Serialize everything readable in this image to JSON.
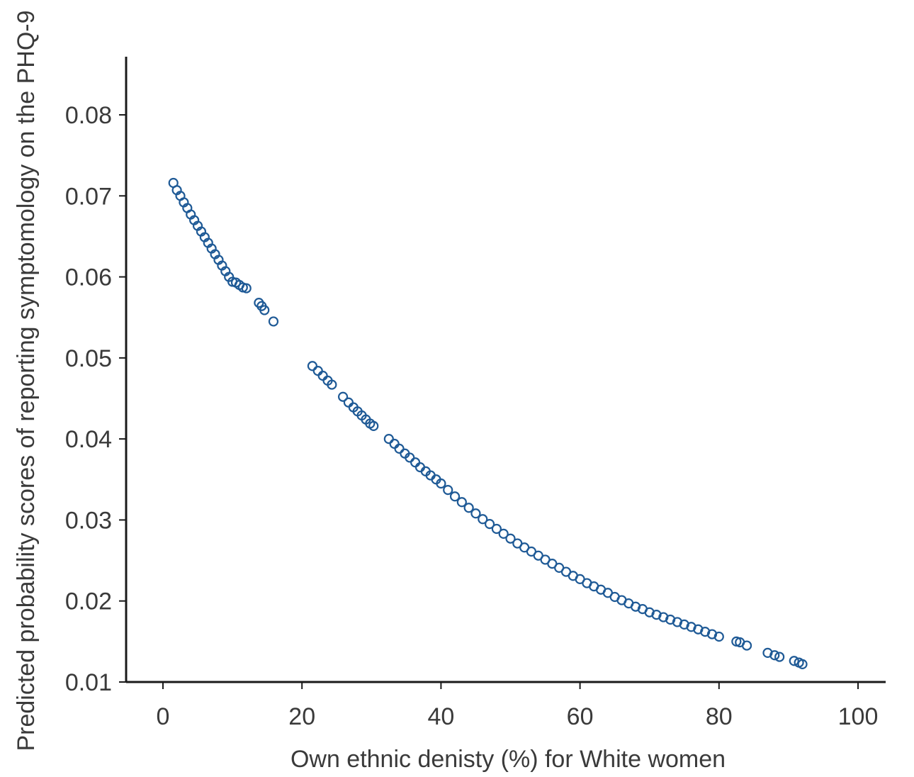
{
  "chart_data": {
    "type": "scatter",
    "xlabel": "Own ethnic denisty (%) for White women",
    "ylabel": "Predicted probability scores of reporting symptomology on the PHQ-9",
    "xlim": [
      -5,
      104
    ],
    "ylim": [
      0.01,
      0.087
    ],
    "xticks": [
      0,
      20,
      40,
      60,
      80,
      100
    ],
    "yticks": [
      0.01,
      0.02,
      0.03,
      0.04,
      0.05,
      0.06,
      0.07,
      0.08
    ],
    "xtick_labels": [
      "0",
      "20",
      "40",
      "60",
      "80",
      "100"
    ],
    "ytick_labels": [
      "0.01",
      "0.02",
      "0.03",
      "0.04",
      "0.05",
      "0.06",
      "0.07",
      "0.08"
    ],
    "grid": false,
    "marker": "hollow-circle",
    "color": "#1f5a96",
    "series": [
      {
        "x": [
          1.5,
          2.0,
          2.5,
          3.0,
          3.5,
          4.0,
          4.5,
          5.0,
          5.5,
          6.0,
          6.5,
          7.0,
          7.5,
          8.0,
          8.5,
          9.0,
          9.5,
          10.0,
          10.5,
          11.0,
          11.5,
          12.0,
          13.8,
          14.2,
          14.6,
          15.9,
          21.5,
          22.3,
          23.0,
          23.7,
          24.3,
          25.9,
          26.7,
          27.4,
          28.0,
          28.6,
          29.2,
          29.8,
          30.3,
          32.5,
          33.3,
          34.0,
          34.8,
          35.5,
          36.3,
          37.0,
          37.8,
          38.5,
          39.3,
          40.0,
          41.0,
          42.0,
          43.0,
          44.0,
          45.0,
          46.0,
          47.0,
          48.0,
          49.0,
          50.0,
          51.0,
          52.0,
          53.0,
          54.0,
          55.0,
          56.0,
          57.0,
          58.0,
          59.0,
          60.0,
          61.0,
          62.0,
          63.0,
          64.0,
          65.0,
          66.0,
          67.0,
          68.0,
          69.0,
          70.0,
          71.0,
          72.0,
          73.0,
          74.0,
          75.0,
          76.0,
          77.0,
          78.0,
          79.0,
          80.0,
          82.5,
          83.0,
          84.0,
          87.0,
          88.0,
          88.7,
          90.8,
          91.5,
          92.0
        ],
        "y": [
          0.0716,
          0.0707,
          0.07,
          0.0692,
          0.0685,
          0.0677,
          0.067,
          0.0663,
          0.0656,
          0.0649,
          0.0642,
          0.0635,
          0.0628,
          0.0621,
          0.0614,
          0.0607,
          0.06,
          0.0594,
          0.0593,
          0.059,
          0.0587,
          0.0586,
          0.0568,
          0.0564,
          0.0559,
          0.0545,
          0.049,
          0.0484,
          0.0478,
          0.0472,
          0.0467,
          0.0452,
          0.0445,
          0.0439,
          0.0434,
          0.0429,
          0.0424,
          0.0419,
          0.0416,
          0.04,
          0.0394,
          0.0388,
          0.0382,
          0.0377,
          0.0371,
          0.0365,
          0.036,
          0.0355,
          0.035,
          0.0345,
          0.0337,
          0.0329,
          0.0322,
          0.0315,
          0.0308,
          0.0301,
          0.0295,
          0.0289,
          0.0283,
          0.0277,
          0.0271,
          0.0266,
          0.0261,
          0.0256,
          0.0251,
          0.0246,
          0.0241,
          0.0236,
          0.0231,
          0.0227,
          0.0222,
          0.0218,
          0.0214,
          0.021,
          0.0205,
          0.0201,
          0.0197,
          0.0193,
          0.019,
          0.0186,
          0.0183,
          0.018,
          0.0177,
          0.0174,
          0.0171,
          0.0168,
          0.0165,
          0.0162,
          0.0159,
          0.0156,
          0.015,
          0.0149,
          0.0145,
          0.0136,
          0.0133,
          0.0131,
          0.0126,
          0.0124,
          0.0122
        ]
      }
    ]
  }
}
